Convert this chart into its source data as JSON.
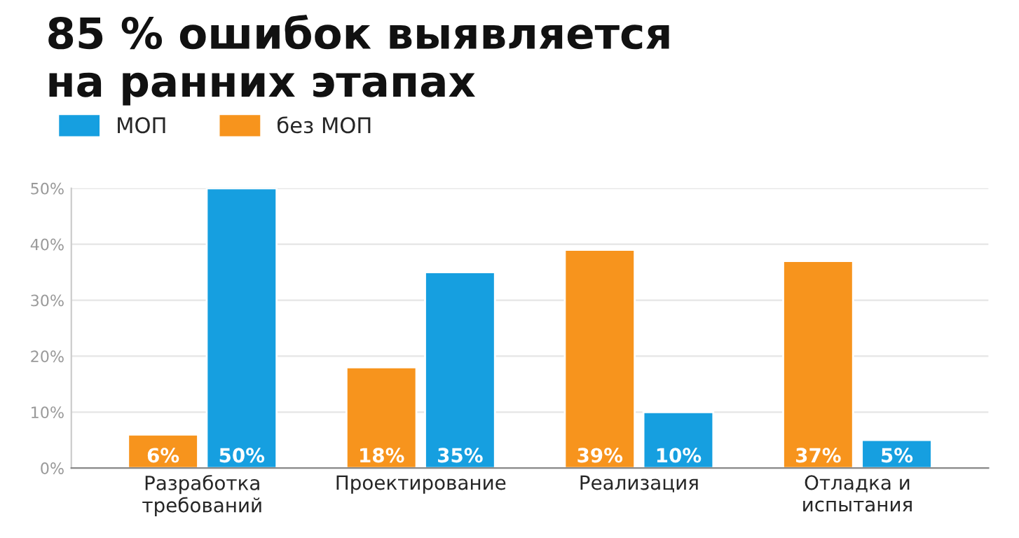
{
  "chart_data": {
    "type": "bar",
    "title": "85 % ошибок выявляется\nна ранних этапах",
    "categories": [
      "Разработка\nтребований",
      "Проектирование",
      "Реализация",
      "Отладка и\nиспытания"
    ],
    "series": [
      {
        "name": "МОП",
        "color": "#169fe0",
        "values": [
          50,
          35,
          10,
          5
        ],
        "value_labels": [
          "50%",
          "35%",
          "10%",
          "5%"
        ]
      },
      {
        "name": "без МОП",
        "color": "#f7941d",
        "values": [
          6,
          18,
          39,
          37
        ],
        "value_labels": [
          "6%",
          "18%",
          "39%",
          "37%"
        ]
      }
    ],
    "ylim": [
      0,
      50
    ],
    "yticks": [
      {
        "value": 0,
        "label": "0%"
      },
      {
        "value": 10,
        "label": "10%"
      },
      {
        "value": 20,
        "label": "20%"
      },
      {
        "value": 30,
        "label": "30%"
      },
      {
        "value": 40,
        "label": "40%"
      },
      {
        "value": 50,
        "label": "50%"
      }
    ],
    "grid": "y",
    "legend": "top left"
  }
}
